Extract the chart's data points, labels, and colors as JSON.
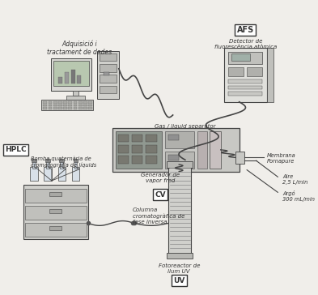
{
  "bg_color": "#f0eeea",
  "labels": {
    "AFS": "AFS",
    "afs_sub": "Detector de\nfluorescència atòmica",
    "computer": "Adquisició i\ntractament de dades",
    "gas_liq": "Gas / liquid separator",
    "generador": "Generador de\nvapor fred",
    "CV": "CV",
    "HPLC": "HPLC",
    "hplc_sub": "Bomba quaternària de\ncromatografia de líquids",
    "columna": "Columna\ncromatogràfica de\nfase inversa",
    "fotoreactor": "Fotoreactor de\nllum UV",
    "UV": "UV",
    "membrana": "Membrana\nPornapure",
    "aire": "Aire\n2,5 L/min",
    "argo": "Argó\n300 mL/min"
  },
  "lc": "#444444",
  "tc": "#333333",
  "dark": "#555555",
  "mid": "#aaaaaa",
  "light": "#cccccc",
  "lighter": "#dddddd",
  "white": "#f5f5f5"
}
